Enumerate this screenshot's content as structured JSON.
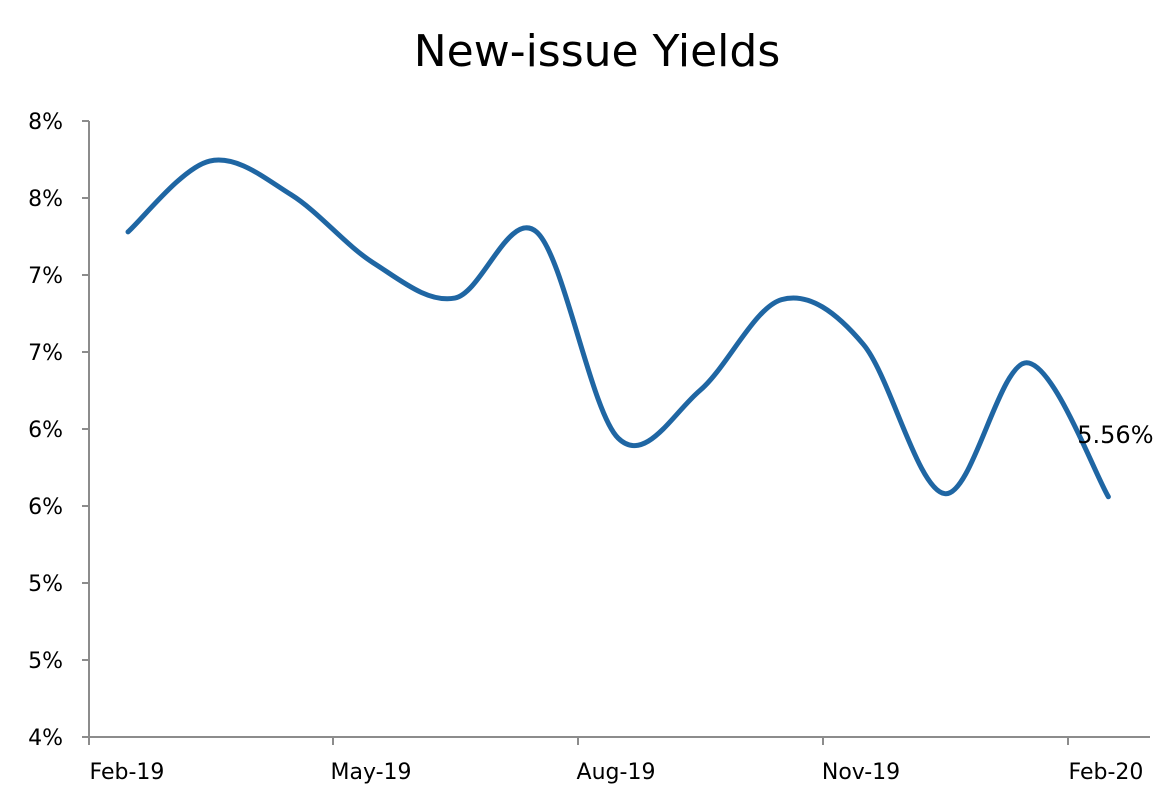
{
  "chart_data": {
    "type": "line",
    "title": "New-issue Yields",
    "xlabel": "",
    "ylabel": "",
    "x": [
      "Feb-19",
      "Mar-19",
      "Apr-19",
      "May-19",
      "Jun-19",
      "Jul-19",
      "Aug-19",
      "Sep-19",
      "Oct-19",
      "Nov-19",
      "Dec-19",
      "Jan-20",
      "Feb-20"
    ],
    "x_tick_labels": [
      "Feb-19",
      "May-19",
      "Aug-19",
      "Nov-19",
      "Feb-20"
    ],
    "y_tick_labels": [
      "4%",
      "5%",
      "5%",
      "6%",
      "6%",
      "7%",
      "7%",
      "8%",
      "8%"
    ],
    "ylim": [
      4.0,
      8.0
    ],
    "grid": false,
    "series": [
      {
        "name": "",
        "color": "#1f66a3",
        "values": [
          7.28,
          7.74,
          7.52,
          7.08,
          6.85,
          7.28,
          5.94,
          6.25,
          6.84,
          6.55,
          5.58,
          6.43,
          5.56
        ]
      }
    ],
    "annotation": {
      "text": "5.56%",
      "point_index": 12
    }
  }
}
